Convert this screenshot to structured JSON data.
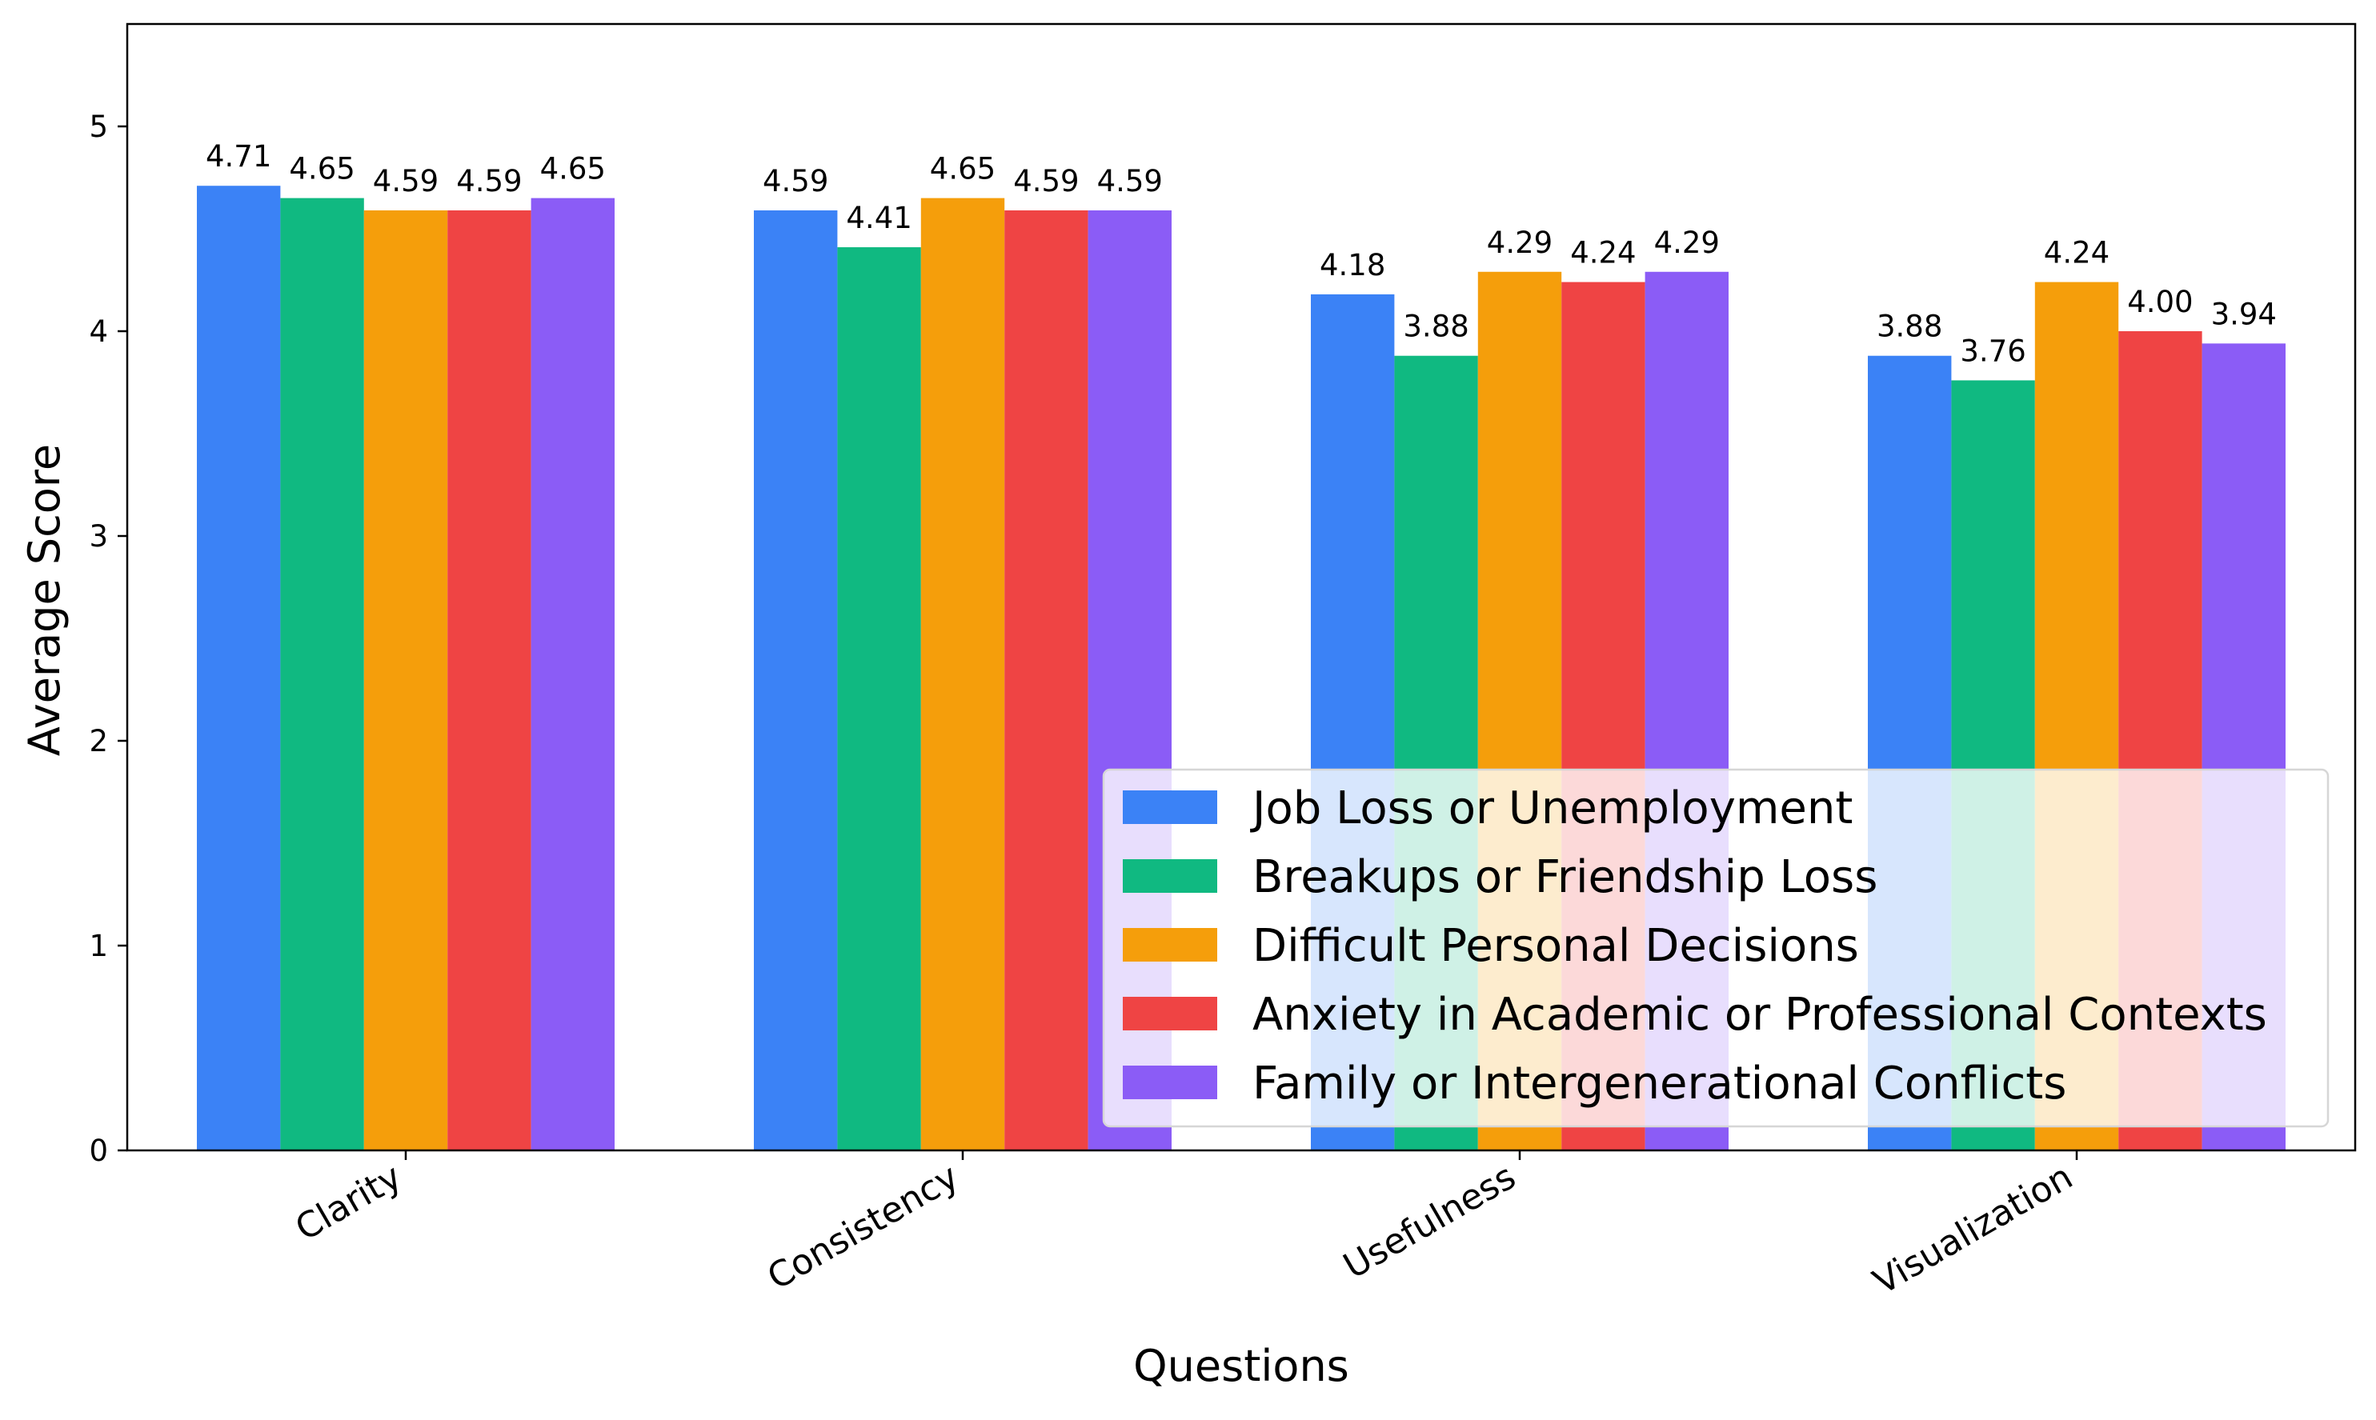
{
  "chart_data": {
    "type": "bar",
    "title": "",
    "xlabel": "Questions",
    "ylabel": "Average Score",
    "categories": [
      "Clarity",
      "Consistency",
      "Usefulness",
      "Visualization"
    ],
    "ylim": [
      0,
      5.5
    ],
    "yticks": [
      0,
      1,
      2,
      3,
      4,
      5
    ],
    "grid": false,
    "legend_position": "bottom-right",
    "series": [
      {
        "name": "Job Loss or Unemployment",
        "color": "#3b82f6",
        "values": [
          4.71,
          4.59,
          4.18,
          3.88
        ],
        "labels": [
          "4.71",
          "4.59",
          "4.18",
          "3.88"
        ]
      },
      {
        "name": "Breakups or Friendship Loss",
        "color": "#10b981",
        "values": [
          4.65,
          4.41,
          3.88,
          3.76
        ],
        "labels": [
          "4.65",
          "4.41",
          "3.88",
          "3.76"
        ]
      },
      {
        "name": "Difficult Personal Decisions",
        "color": "#f59e0b",
        "values": [
          4.59,
          4.65,
          4.29,
          4.24
        ],
        "labels": [
          "4.59",
          "4.65",
          "4.29",
          "4.24"
        ]
      },
      {
        "name": "Anxiety in Academic or Professional Contexts",
        "color": "#ef4444",
        "values": [
          4.59,
          4.59,
          4.24,
          4.0
        ],
        "labels": [
          "4.59",
          "4.59",
          "4.24",
          "4.00"
        ]
      },
      {
        "name": "Family or Intergenerational Conflicts",
        "color": "#8b5cf6",
        "values": [
          4.65,
          4.59,
          4.29,
          3.94
        ],
        "labels": [
          "4.65",
          "4.59",
          "4.29",
          "3.94"
        ]
      }
    ]
  }
}
